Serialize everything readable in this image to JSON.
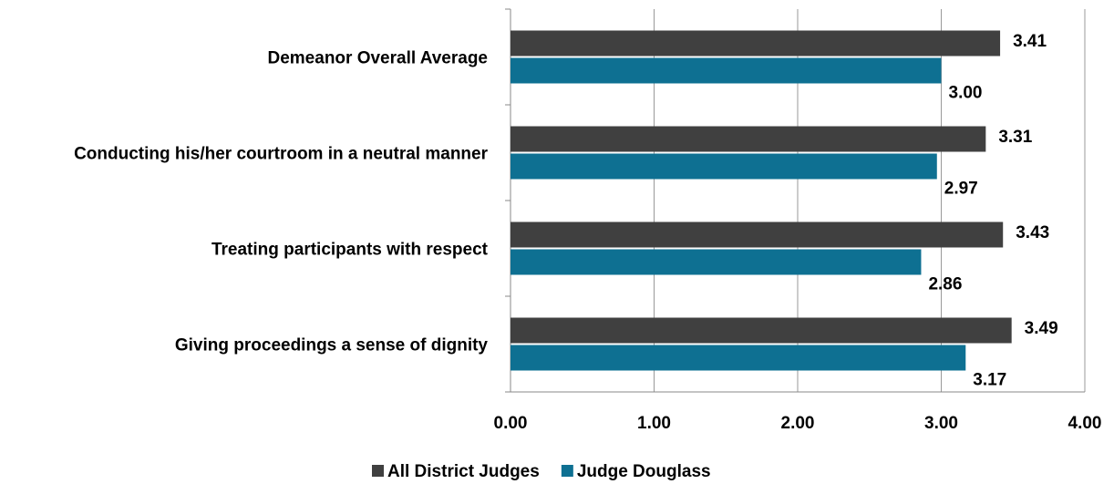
{
  "chart_data": {
    "type": "hbar",
    "categories": [
      "Demeanor Overall Average",
      "Conducting his/her courtroom in a neutral manner",
      "Treating participants with respect",
      "Giving proceedings a sense of dignity"
    ],
    "series": [
      {
        "name": "All District Judges",
        "color": "#404040",
        "values": [
          3.41,
          3.31,
          3.43,
          3.49
        ],
        "value_labels": [
          "3.41",
          "3.31",
          "3.43",
          "3.49"
        ]
      },
      {
        "name": "Judge Douglass",
        "color": "#0e7092",
        "values": [
          3.0,
          2.97,
          2.86,
          3.17
        ],
        "value_labels": [
          "3.00",
          "2.97",
          "2.86",
          "3.17"
        ]
      }
    ],
    "xlim": [
      0,
      4
    ],
    "xticks": [
      {
        "value": 0,
        "label": "0.00"
      },
      {
        "value": 1,
        "label": "1.00"
      },
      {
        "value": 2,
        "label": "2.00"
      },
      {
        "value": 3,
        "label": "3.00"
      },
      {
        "value": 4,
        "label": "4.00"
      }
    ],
    "grid": true,
    "legend": "bottom"
  }
}
